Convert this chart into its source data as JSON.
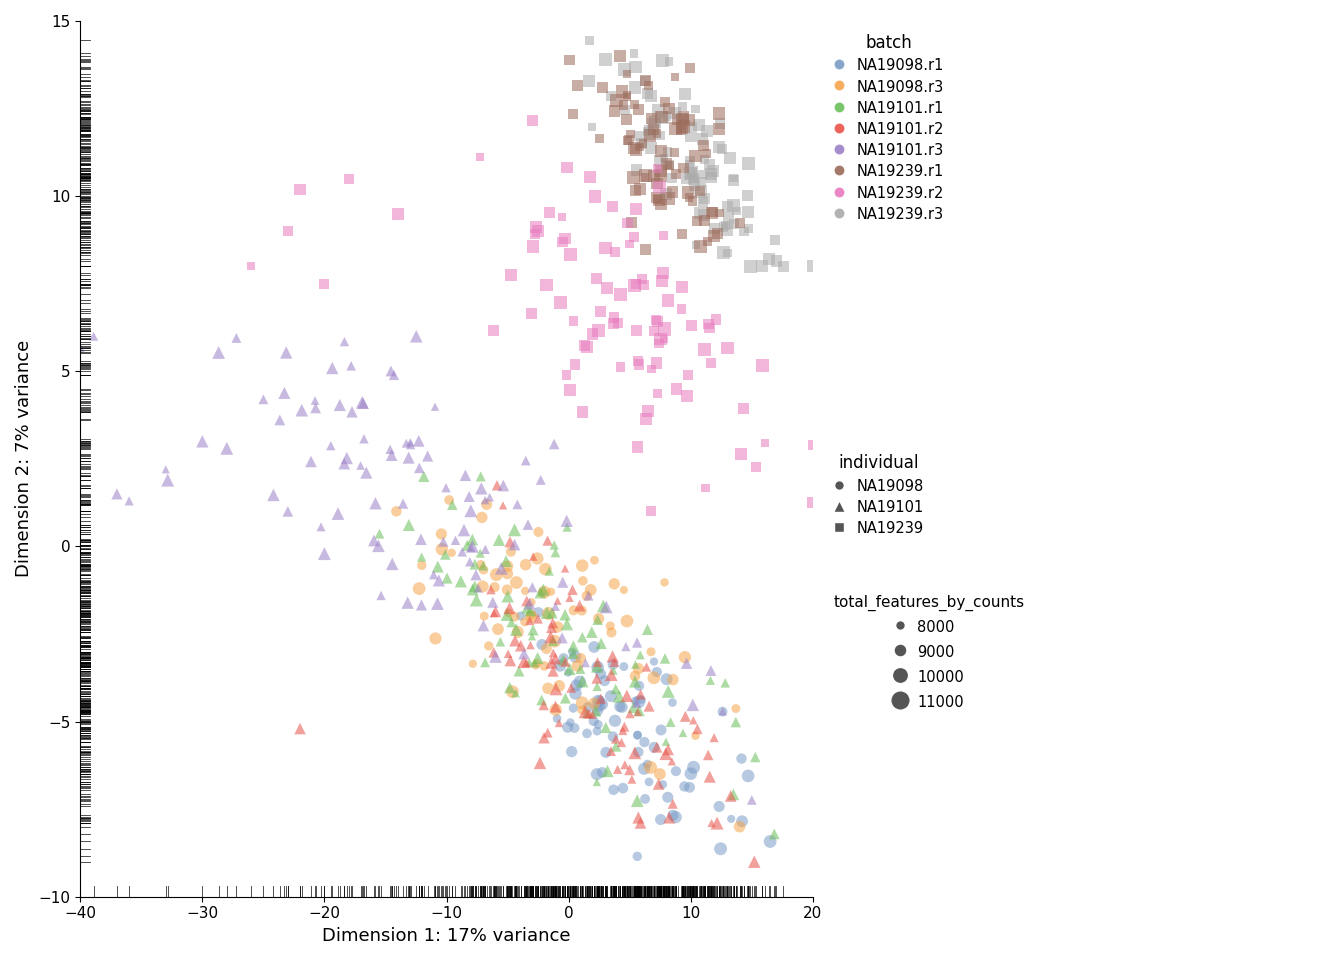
{
  "xlabel": "Dimension 1: 17% variance",
  "ylabel": "Dimension 2: 7% variance",
  "xlim": [
    -40,
    20
  ],
  "ylim": [
    -10,
    15
  ],
  "batch_colors": {
    "NA19098.r1": "#7B9DC8",
    "NA19098.r3": "#F5A44B",
    "NA19101.r1": "#6BBF59",
    "NA19101.r2": "#E8534A",
    "NA19101.r3": "#9B80C8",
    "NA19239.r1": "#9B6B5A",
    "NA19239.r2": "#E87BBF",
    "NA19239.r3": "#AAAAAA"
  },
  "alpha": 0.55,
  "background_color": "#ffffff",
  "point_size": 55
}
